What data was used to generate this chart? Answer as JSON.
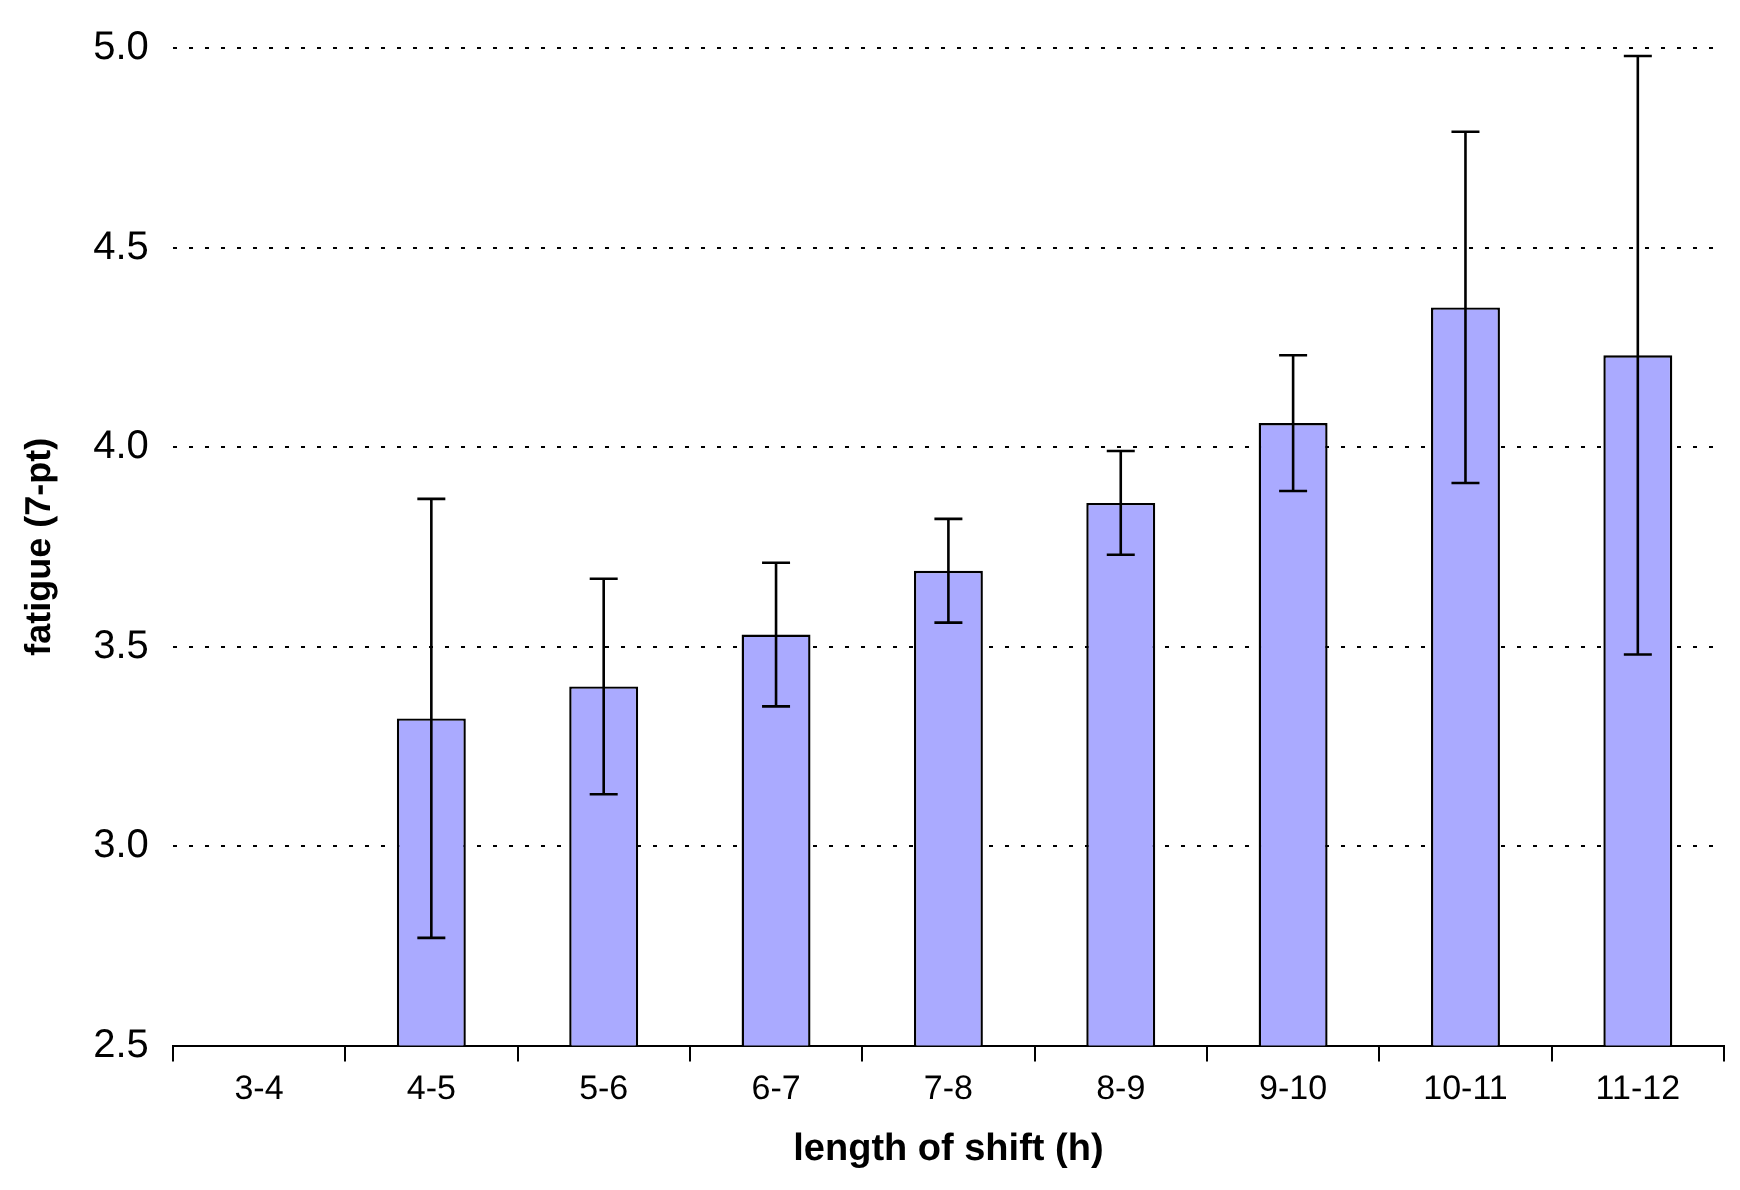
{
  "chart_data": {
    "type": "bar",
    "xlabel": "length of shift (h)",
    "ylabel": "fatigue (7-pt)",
    "categories": [
      "3-4",
      "4-5",
      "5-6",
      "6-7",
      "7-8",
      "8-9",
      "9-10",
      "10-11",
      "11-12"
    ],
    "values": [
      null,
      3.32,
      3.4,
      3.53,
      3.69,
      3.86,
      4.06,
      4.35,
      4.23
    ],
    "errors": [
      null,
      0.55,
      0.27,
      0.18,
      0.13,
      0.13,
      0.17,
      0.44,
      0.75
    ],
    "color": "#aaaaff",
    "ylim": [
      2.5,
      5.0
    ],
    "yticks": [
      {
        "value": 2.5,
        "label": "2.5"
      },
      {
        "value": 3,
        "label": "3.0"
      },
      {
        "value": 3.5,
        "label": "3.5"
      },
      {
        "value": 4,
        "label": "4.0"
      },
      {
        "value": 4.5,
        "label": "4.5"
      },
      {
        "value": 5,
        "label": "5.0"
      }
    ],
    "grid": "y",
    "legend": false
  }
}
